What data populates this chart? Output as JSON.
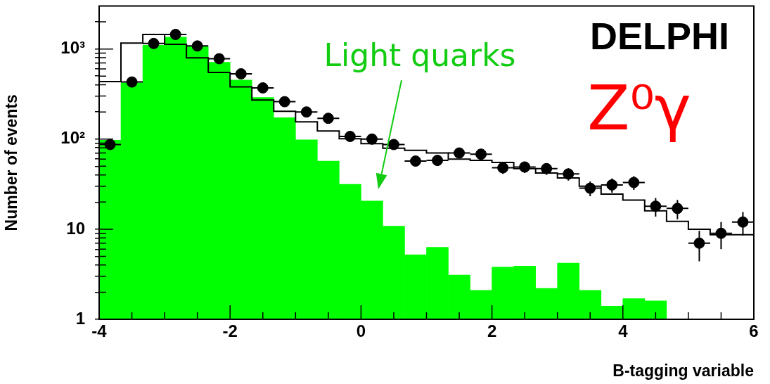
{
  "chart_data": {
    "type": "histogram",
    "xlabel": "B-tagging variable",
    "ylabel": "Number of events",
    "bins": [
      -4,
      -3.667,
      -3.333,
      -3,
      -2.667,
      -2.333,
      -2,
      -1.667,
      -1.333,
      -1,
      -0.667,
      -0.333,
      0,
      0.333,
      0.667,
      1,
      1.333,
      1.667,
      2,
      2.333,
      2.667,
      3,
      3.333,
      3.667,
      4,
      4.333,
      4.667,
      5,
      5.333,
      5.667,
      6
    ],
    "series": [
      {
        "color": "#00ff00",
        "values": [
          97,
          421,
          1100,
          1350,
          1060,
          711,
          452,
          289,
          173,
          98,
          57,
          31.5,
          20.5,
          10.8,
          5.2,
          6.3,
          3.1,
          2.1,
          3.8,
          3.9,
          2.2,
          4.2,
          2.1,
          1.4,
          1.7,
          1.6,
          null,
          null,
          null,
          null
        ]
      },
      {
        "type": "step",
        "color": "#000000",
        "x": [
          -4,
          -3.667,
          -3.333,
          -3,
          -2.667,
          -2.333,
          -2,
          -1.667,
          -1.333,
          -1,
          -0.667,
          -0.333,
          0,
          0.333,
          0.667,
          1,
          1.333,
          1.667,
          2,
          2.333,
          2.667,
          3,
          3.333,
          3.667,
          4,
          4.333,
          4.667,
          5,
          5.333,
          5.667,
          6
        ],
        "values": [
          100,
          434,
          1160,
          1450,
          1125,
          796,
          550,
          380,
          271,
          203,
          155,
          123,
          101,
          89,
          79,
          75,
          70,
          60,
          58,
          55,
          47,
          42,
          37,
          30,
          24.5,
          21,
          16,
          12.2,
          10,
          8.7,
          8.7
        ]
      },
      {
        "type": "scatter",
        "marker": "circle",
        "color": "#000000",
        "x": [
          -3.833,
          -3.5,
          -3.167,
          -2.833,
          -2.5,
          -2.167,
          -1.833,
          -1.5,
          -1.167,
          -0.833,
          -0.5,
          -0.167,
          0.167,
          0.5,
          0.833,
          1.167,
          1.5,
          1.833,
          2.167,
          2.5,
          2.833,
          3.167,
          3.5,
          3.833,
          4.167,
          4.5,
          4.833,
          5.167,
          5.5,
          5.833
        ],
        "values": [
          87,
          430,
          1150,
          1450,
          1080,
          780,
          530,
          370,
          260,
          200,
          170,
          107,
          100,
          87,
          57,
          58,
          70,
          68,
          48,
          49,
          47,
          41,
          28.5,
          31,
          33,
          18,
          17,
          7,
          9,
          12
        ],
        "errors": [
          9,
          21,
          34,
          38,
          33,
          28,
          23,
          19,
          16,
          14,
          13,
          10,
          10,
          9,
          7.5,
          7.6,
          8.4,
          8.2,
          6.9,
          7,
          6.9,
          6.4,
          5.3,
          5.6,
          5.7,
          4.2,
          4.1,
          2.6,
          3,
          3.5
        ],
        "xerrors": [
          0.167,
          0.167,
          0.167,
          0.167,
          0.167,
          0.167,
          0.167,
          0.167,
          0.167,
          0.167,
          0.167,
          0.167,
          0.167,
          0.167,
          0.167,
          0.167,
          0.167,
          0.167,
          0.167,
          0.167,
          0.167,
          0.167,
          0.167,
          0.167,
          0.167,
          0.167,
          0.167,
          0.167,
          0.167,
          0.167
        ]
      }
    ],
    "xlim": [
      -4,
      6
    ],
    "xticks": [
      -4,
      {
        "value": -3.5,
        "label": null
      },
      {
        "value": -3,
        "label": null
      },
      {
        "value": -2.5,
        "label": null
      },
      -2,
      {
        "value": -1.5,
        "label": null
      },
      {
        "value": -1,
        "label": null
      },
      {
        "value": -0.5,
        "label": null
      },
      0,
      {
        "value": 0.5,
        "label": null
      },
      {
        "value": 1,
        "label": null
      },
      {
        "value": 1.5,
        "label": null
      },
      2,
      {
        "value": 2.5,
        "label": null
      },
      {
        "value": 3,
        "label": null
      },
      {
        "value": 3.5,
        "label": null
      },
      4,
      {
        "value": 4.5,
        "label": null
      },
      {
        "value": 5,
        "label": null
      },
      {
        "value": 5.5,
        "label": null
      },
      6
    ],
    "ylim": [
      1,
      3000
    ],
    "yticks": [
      1,
      {
        "value": 2,
        "label": null
      },
      {
        "value": 3,
        "label": null
      },
      {
        "value": 4,
        "label": null
      },
      {
        "value": 5,
        "label": null
      },
      {
        "value": 6,
        "label": null
      },
      {
        "value": 7,
        "label": null
      },
      {
        "value": 8,
        "label": null
      },
      {
        "value": 9,
        "label": null
      },
      10,
      {
        "value": 20,
        "label": null
      },
      {
        "value": 30,
        "label": null
      },
      {
        "value": 40,
        "label": null
      },
      {
        "value": 50,
        "label": null
      },
      {
        "value": 60,
        "label": null
      },
      {
        "value": 70,
        "label": null
      },
      {
        "value": 80,
        "label": null
      },
      {
        "value": 90,
        "label": null
      },
      {
        "value": 100,
        "label": "10²"
      },
      {
        "value": 200,
        "label": null
      },
      {
        "value": 300,
        "label": null
      },
      {
        "value": 400,
        "label": null
      },
      {
        "value": 500,
        "label": null
      },
      {
        "value": 600,
        "label": null
      },
      {
        "value": 700,
        "label": null
      },
      {
        "value": 800,
        "label": null
      },
      {
        "value": 900,
        "label": null
      },
      {
        "value": 1000,
        "label": "10³"
      },
      {
        "value": 2000,
        "label": null
      }
    ],
    "log": true,
    "grid": false,
    "legend": false,
    "annotations": [
      "Light quarks",
      "DELPHI",
      "Z⁰γ"
    ]
  }
}
